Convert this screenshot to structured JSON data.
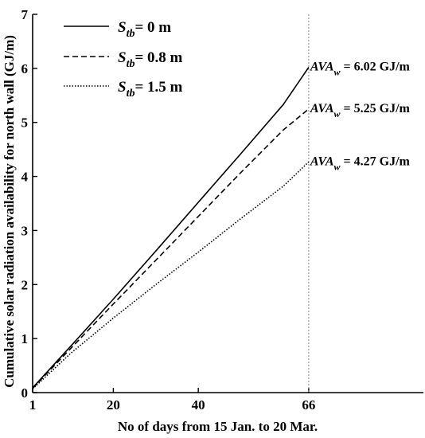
{
  "chart_data": {
    "type": "line",
    "xlabel": "No of days from 15 Jan. to 20 Mar.",
    "ylabel": "Cumulative solar radiation availability for north wall (GJ/m)",
    "xlim": [
      1,
      93
    ],
    "ylim": [
      0,
      7
    ],
    "xticks": [
      1,
      20,
      40,
      66
    ],
    "yticks": [
      0,
      1,
      2,
      3,
      4,
      5,
      6,
      7
    ],
    "grid": false,
    "legend_position": "top-left",
    "reference_line": {
      "x": 66,
      "style": "dotted"
    },
    "series": [
      {
        "name": "S_tb = 0 m",
        "name_main": "S",
        "name_sub": "tb",
        "name_tail": "= 0 m",
        "style": "solid",
        "x": [
          1,
          10,
          20,
          30,
          40,
          50,
          60,
          66
        ],
        "y": [
          0.09,
          0.86,
          1.73,
          2.62,
          3.52,
          4.42,
          5.33,
          6.02
        ]
      },
      {
        "name": "S_tb = 0.8 m",
        "name_main": "S",
        "name_sub": "tb",
        "name_tail": "= 0.8 m",
        "style": "dashed",
        "x": [
          1,
          10,
          20,
          30,
          40,
          50,
          60,
          66
        ],
        "y": [
          0.08,
          0.82,
          1.64,
          2.45,
          3.26,
          4.07,
          4.86,
          5.25
        ]
      },
      {
        "name": "S_tb = 1.5 m",
        "name_main": "S",
        "name_sub": "tb",
        "name_tail": "= 1.5 m",
        "style": "dotted",
        "x": [
          1,
          10,
          20,
          30,
          40,
          50,
          60,
          66
        ],
        "y": [
          0.07,
          0.73,
          1.38,
          2.0,
          2.6,
          3.22,
          3.82,
          4.27
        ]
      }
    ],
    "annotations": [
      {
        "main": "AVA",
        "sub": "w",
        "text": " = 6.02 GJ/m",
        "x": 66,
        "y": 6.02
      },
      {
        "main": "AVA",
        "sub": "w",
        "text": " = 5.25 GJ/m",
        "x": 66,
        "y": 5.25
      },
      {
        "main": "AVA",
        "sub": "w",
        "text": " = 4.27 GJ/m",
        "x": 66,
        "y": 4.27
      }
    ]
  },
  "colors": {
    "line": "#000000",
    "axis": "#000000",
    "reference_line": "#888888",
    "background": "#ffffff"
  }
}
